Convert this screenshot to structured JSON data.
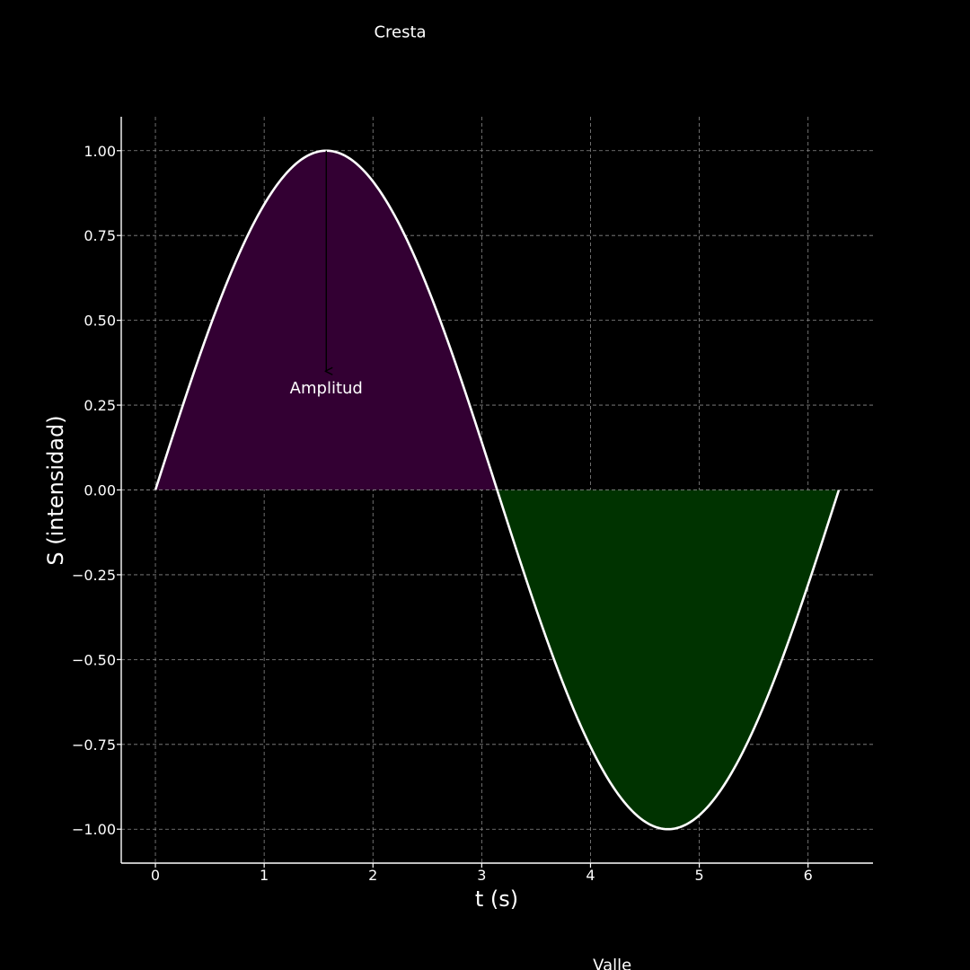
{
  "chart_data": {
    "type": "area",
    "title": "",
    "xlabel": "t (s)",
    "ylabel": "S (intensidad)",
    "xlim": [
      -0.314,
      6.597
    ],
    "ylim": [
      -1.1,
      1.1
    ],
    "xticks": [
      0,
      1,
      2,
      3,
      4,
      5,
      6
    ],
    "yticks": [
      -1.0,
      -0.75,
      -0.5,
      -0.25,
      0.0,
      0.25,
      0.5,
      0.75,
      1.0
    ],
    "ytick_labels": [
      "−1.00",
      "−0.75",
      "−0.50",
      "−0.25",
      "0.00",
      "0.25",
      "0.50",
      "0.75",
      "1.00"
    ],
    "grid": true,
    "series": [
      {
        "function": "sin(t)",
        "x_start": 0,
        "x_end": 6.2832,
        "line_color": "#ffffff",
        "fill_positive_color": "#330033",
        "fill_negative_color": "#003300"
      }
    ],
    "annotations": [
      {
        "text": "Cresta",
        "x": 2.25,
        "y": 1.35
      },
      {
        "text": "Amplitud",
        "x": 1.5708,
        "y": 0.3,
        "arrow_from": [
          1.5708,
          1.0
        ],
        "arrow_to": [
          1.5708,
          0.35
        ]
      },
      {
        "text": "Valle",
        "x": 4.2,
        "y": -1.4
      }
    ]
  },
  "colors": {
    "background": "#000000",
    "foreground": "#ffffff",
    "grid": "#8a8a8a",
    "arrow": "#000000"
  }
}
